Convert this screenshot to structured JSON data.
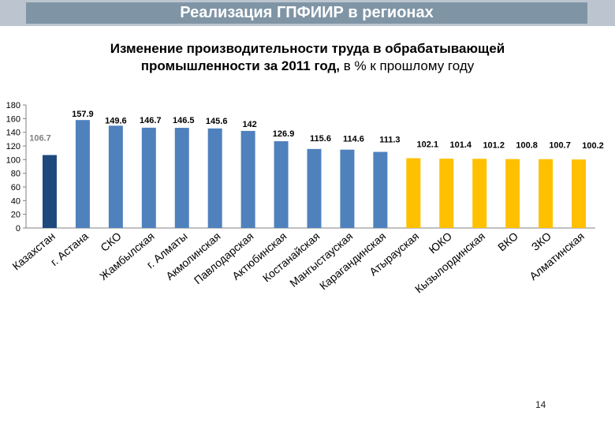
{
  "header": {
    "title": "Реализация ГПФИИР в регионах"
  },
  "chart_data": {
    "type": "bar",
    "title_line1": "Изменение производительности труда в обрабатывающей",
    "title_line2_bold": "промышленности за 2011 год,",
    "title_line2_normal": "в % к прошлому году",
    "xlabel": "",
    "ylabel": "",
    "ylim": [
      0,
      180
    ],
    "yticks": [
      0,
      20,
      40,
      60,
      80,
      100,
      120,
      140,
      160,
      180
    ],
    "grid": false,
    "categories": [
      "Казахстан",
      "г. Астана",
      "СКО",
      "Жамбылская",
      "г. Алматы",
      "Акмолинская",
      "Павлодарская",
      "Актюбинская",
      "Костанайская",
      "Мангыстауская",
      "Карагандинская",
      "Атырауская",
      "ЮКО",
      "Кызылординская",
      "ВКО",
      "ЗКО",
      "Алматинская"
    ],
    "values": [
      106.7,
      157.9,
      149.6,
      146.7,
      146.5,
      145.6,
      142,
      126.9,
      115.6,
      114.6,
      111.3,
      102.1,
      101.4,
      101.2,
      100.8,
      100.7,
      100.2
    ],
    "value_labels": [
      "106.7",
      "157.9",
      "149.6",
      "146.7",
      "146.5",
      "145.6",
      "142",
      "126.9",
      "115.6",
      "114.6",
      "111.3",
      "102.1",
      "101.4",
      "101.2",
      "100.8",
      "100.7",
      "100.2"
    ],
    "colors": {
      "national": "#1f497d",
      "above": "#4f81bd",
      "near": "#ffc000",
      "national_label": "#7f7f7f"
    },
    "bar_color_groups": [
      "national",
      "above",
      "above",
      "above",
      "above",
      "above",
      "above",
      "above",
      "above",
      "above",
      "above",
      "near",
      "near",
      "near",
      "near",
      "near",
      "near"
    ]
  },
  "footer": {
    "page_number": "14"
  }
}
